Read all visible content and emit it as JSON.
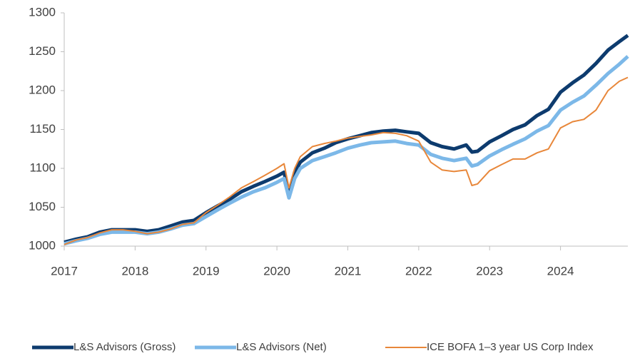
{
  "chart_data": {
    "type": "line",
    "x": [
      2017,
      2017.17,
      2017.33,
      2017.5,
      2017.67,
      2017.83,
      2018,
      2018.17,
      2018.33,
      2018.5,
      2018.67,
      2018.83,
      2019,
      2019.17,
      2019.33,
      2019.5,
      2019.67,
      2019.83,
      2020,
      2020.1,
      2020.17,
      2020.25,
      2020.33,
      2020.5,
      2020.67,
      2020.83,
      2021,
      2021.17,
      2021.33,
      2021.5,
      2021.67,
      2021.83,
      2022,
      2022.17,
      2022.33,
      2022.5,
      2022.67,
      2022.75,
      2022.83,
      2023,
      2023.17,
      2023.33,
      2023.5,
      2023.67,
      2023.83,
      2024,
      2024.17,
      2024.33,
      2024.5,
      2024.67,
      2024.83,
      2024.95
    ],
    "series": [
      {
        "name": "L&S Advisors (Gross)",
        "color": "#0d3b6e",
        "width": 5,
        "values": [
          1005,
          1009,
          1012,
          1018,
          1021,
          1021,
          1021,
          1019,
          1021,
          1026,
          1031,
          1033,
          1043,
          1052,
          1060,
          1070,
          1077,
          1083,
          1090,
          1095,
          1068,
          1095,
          1108,
          1120,
          1126,
          1133,
          1138,
          1142,
          1146,
          1148,
          1149,
          1147,
          1145,
          1133,
          1128,
          1125,
          1130,
          1121,
          1122,
          1134,
          1142,
          1150,
          1156,
          1168,
          1176,
          1198,
          1210,
          1220,
          1235,
          1252,
          1263,
          1271
        ]
      },
      {
        "name": "L&S Advisors (Net)",
        "color": "#7cb8e8",
        "width": 5,
        "values": [
          1003,
          1007,
          1010,
          1015,
          1018,
          1018,
          1018,
          1016,
          1018,
          1022,
          1027,
          1029,
          1038,
          1047,
          1055,
          1063,
          1070,
          1075,
          1082,
          1087,
          1062,
          1087,
          1100,
          1110,
          1115,
          1120,
          1126,
          1130,
          1133,
          1134,
          1135,
          1132,
          1130,
          1118,
          1113,
          1110,
          1113,
          1103,
          1105,
          1116,
          1124,
          1131,
          1138,
          1148,
          1155,
          1175,
          1185,
          1193,
          1207,
          1222,
          1234,
          1244
        ]
      },
      {
        "name": "ICE BOFA 1–3 year US Corp Index",
        "color": "#e8873a",
        "width": 2,
        "values": [
          1002,
          1008,
          1011,
          1017,
          1021,
          1021,
          1019,
          1016,
          1018,
          1022,
          1028,
          1030,
          1043,
          1053,
          1063,
          1075,
          1083,
          1091,
          1100,
          1106,
          1075,
          1100,
          1115,
          1128,
          1132,
          1135,
          1139,
          1141,
          1143,
          1146,
          1145,
          1142,
          1135,
          1108,
          1098,
          1096,
          1098,
          1078,
          1080,
          1097,
          1105,
          1112,
          1112,
          1120,
          1125,
          1152,
          1160,
          1163,
          1175,
          1200,
          1212,
          1217
        ]
      }
    ],
    "xlim": [
      2017,
      2024.95
    ],
    "xticks": [
      2017,
      2018,
      2019,
      2020,
      2021,
      2022,
      2023,
      2024
    ],
    "ylim": [
      1000,
      1300
    ],
    "yticks": [
      1000,
      1050,
      1100,
      1150,
      1200,
      1250,
      1300
    ],
    "legend": "bottom"
  }
}
